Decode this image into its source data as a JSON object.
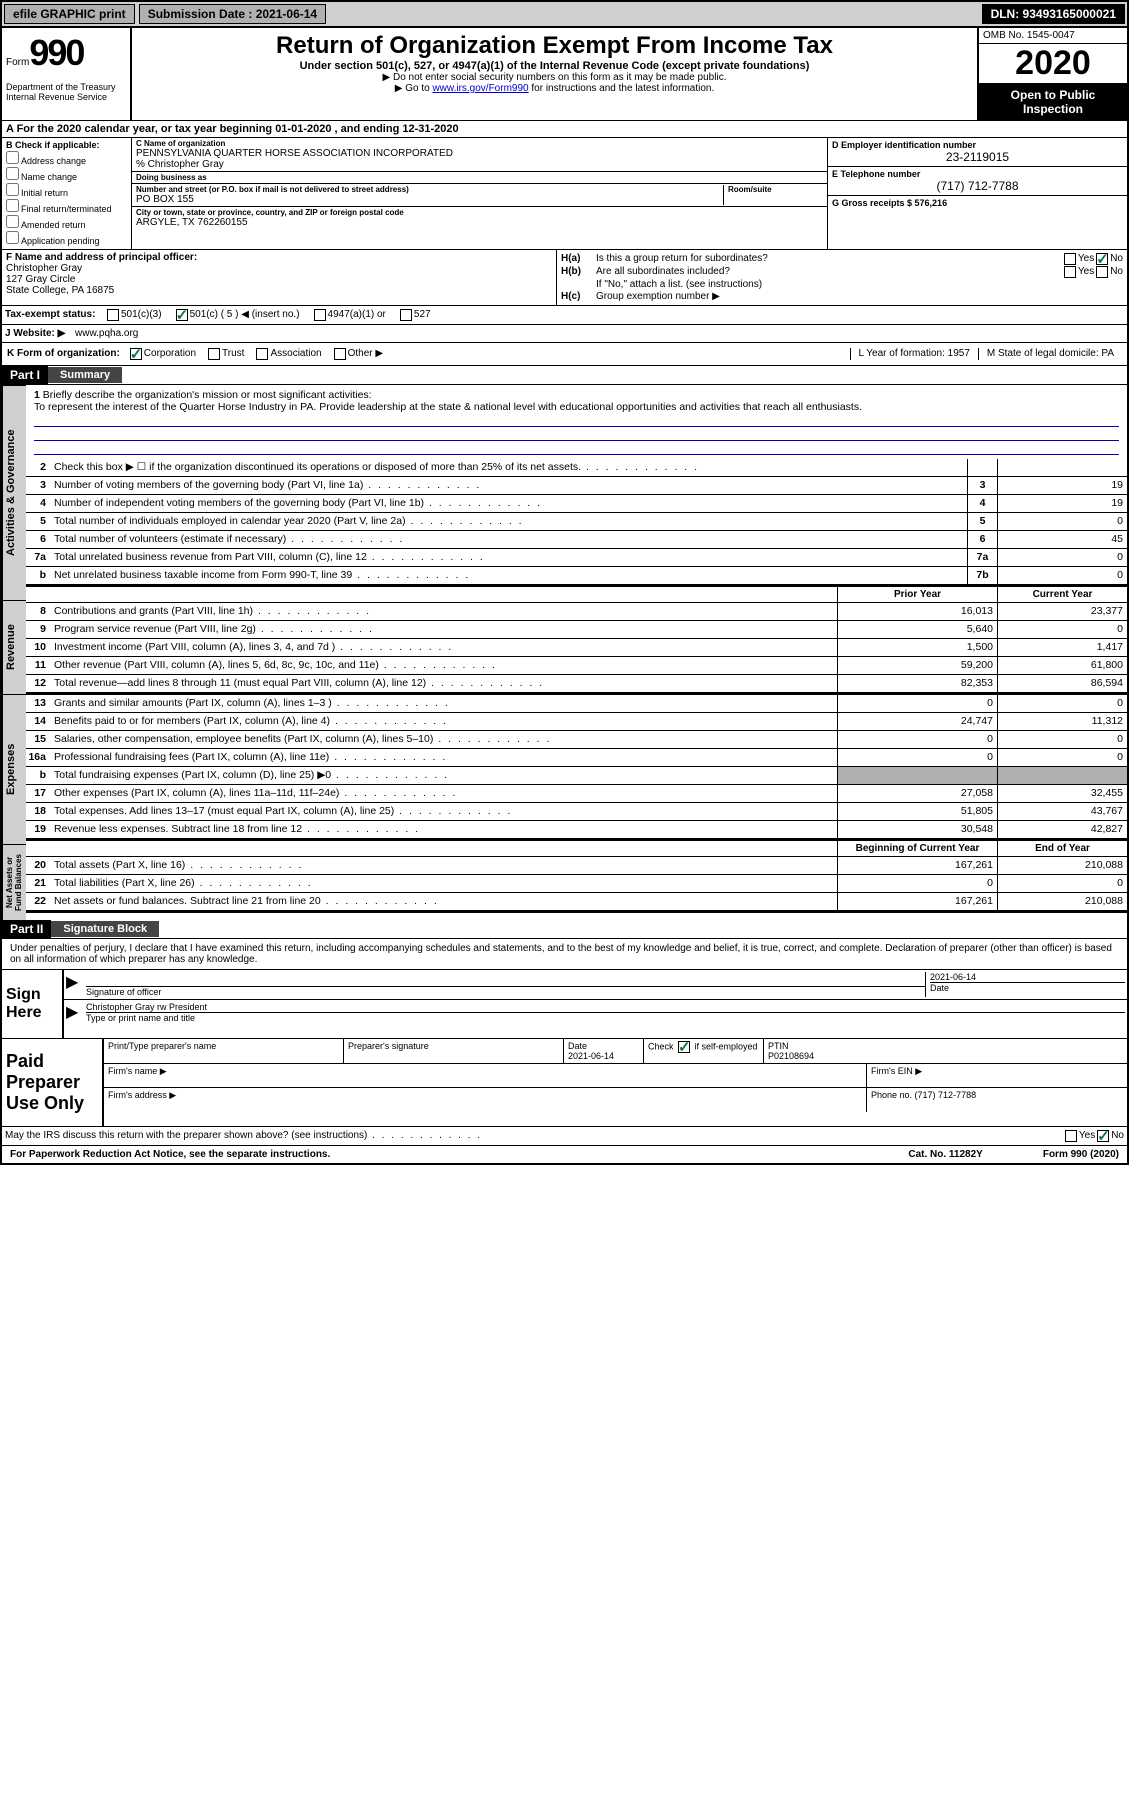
{
  "topbar": {
    "efile": "efile GRAPHIC print",
    "sub_label": "Submission Date : 2021-06-14",
    "dln": "DLN: 93493165000021"
  },
  "header": {
    "form_word": "Form",
    "form_num": "990",
    "title": "Return of Organization Exempt From Income Tax",
    "subtitle": "Under section 501(c), 527, or 4947(a)(1) of the Internal Revenue Code (except private foundations)",
    "arrow1": "▶ Do not enter social security numbers on this form as it may be made public.",
    "arrow2_pre": "▶ Go to ",
    "arrow2_link": "www.irs.gov/Form990",
    "arrow2_post": " for instructions and the latest information.",
    "dept": "Department of the Treasury\nInternal Revenue Service",
    "omb": "OMB No. 1545-0047",
    "year": "2020",
    "open": "Open to Public Inspection"
  },
  "row_a": "A For the 2020 calendar year, or tax year beginning 01-01-2020    , and ending 12-31-2020",
  "col_b": {
    "header": "B Check if applicable:",
    "items": [
      "Address change",
      "Name change",
      "Initial return",
      "Final return/terminated",
      "Amended return",
      "Application pending"
    ]
  },
  "col_c": {
    "name_label": "C Name of organization",
    "name": "PENNSYLVANIA QUARTER HORSE ASSOCIATION INCORPORATED",
    "co": "% Christopher Gray",
    "dba_label": "Doing business as",
    "addr_label": "Number and street (or P.O. box if mail is not delivered to street address)",
    "room_label": "Room/suite",
    "addr": "PO BOX 155",
    "city_label": "City or town, state or province, country, and ZIP or foreign postal code",
    "city": "ARGYLE, TX  762260155"
  },
  "col_d": {
    "ein_label": "D Employer identification number",
    "ein": "23-2119015",
    "tel_label": "E Telephone number",
    "tel": "(717) 712-7788",
    "gross_label": "G Gross receipts $ 576,216"
  },
  "principal": {
    "label": "F  Name and address of principal officer:",
    "name": "Christopher Gray",
    "addr1": "127 Gray Circle",
    "addr2": "State College, PA  16875"
  },
  "sec_h": {
    "ha": "Is this a group return for subordinates?",
    "ha_lbl": "H(a)",
    "hb_lbl": "H(b)",
    "hb": "Are all subordinates included?",
    "hb_note": "If \"No,\" attach a list. (see instructions)",
    "hc_lbl": "H(c)",
    "hc": "Group exemption number ▶"
  },
  "tax_status": {
    "label": "Tax-exempt status:",
    "c3": "501(c)(3)",
    "c5": "501(c) ( 5 ) ◀ (insert no.)",
    "a1": "4947(a)(1) or",
    "s527": "527"
  },
  "website": {
    "label": "J   Website: ▶",
    "val": "  www.pqha.org"
  },
  "row_k": {
    "label": "K Form of organization:",
    "corp": "Corporation",
    "trust": "Trust",
    "assoc": "Association",
    "other": "Other ▶",
    "year_label": "L Year of formation: 1957",
    "state_label": "M State of legal domicile: PA"
  },
  "part1": {
    "label": "Part I",
    "title": "Summary"
  },
  "mission": {
    "num": "1",
    "label": "Briefly describe the organization's mission or most significant activities:",
    "text": "To represent the interest of the Quarter Horse Industry in PA. Provide leadership at the state & national level with educational opportunities and activities that reach all enthusiasts."
  },
  "lines_gov": [
    {
      "n": "2",
      "t": "Check this box ▶ ☐  if the organization discontinued its operations or disposed of more than 25% of its net assets.",
      "box": "",
      "v": ""
    },
    {
      "n": "3",
      "t": "Number of voting members of the governing body (Part VI, line 1a)",
      "box": "3",
      "v": "19"
    },
    {
      "n": "4",
      "t": "Number of independent voting members of the governing body (Part VI, line 1b)",
      "box": "4",
      "v": "19"
    },
    {
      "n": "5",
      "t": "Total number of individuals employed in calendar year 2020 (Part V, line 2a)",
      "box": "5",
      "v": "0"
    },
    {
      "n": "6",
      "t": "Total number of volunteers (estimate if necessary)",
      "box": "6",
      "v": "45"
    },
    {
      "n": "7a",
      "t": "Total unrelated business revenue from Part VIII, column (C), line 12",
      "box": "7a",
      "v": "0"
    },
    {
      "n": "b",
      "t": "Net unrelated business taxable income from Form 990-T, line 39",
      "box": "7b",
      "v": "0"
    }
  ],
  "col_headers": {
    "prior": "Prior Year",
    "current": "Current Year",
    "begin": "Beginning of Current Year",
    "end": "End of Year"
  },
  "lines_rev": [
    {
      "n": "8",
      "t": "Contributions and grants (Part VIII, line 1h)",
      "p": "16,013",
      "c": "23,377"
    },
    {
      "n": "9",
      "t": "Program service revenue (Part VIII, line 2g)",
      "p": "5,640",
      "c": "0"
    },
    {
      "n": "10",
      "t": "Investment income (Part VIII, column (A), lines 3, 4, and 7d )",
      "p": "1,500",
      "c": "1,417"
    },
    {
      "n": "11",
      "t": "Other revenue (Part VIII, column (A), lines 5, 6d, 8c, 9c, 10c, and 11e)",
      "p": "59,200",
      "c": "61,800"
    },
    {
      "n": "12",
      "t": "Total revenue—add lines 8 through 11 (must equal Part VIII, column (A), line 12)",
      "p": "82,353",
      "c": "86,594"
    }
  ],
  "lines_exp": [
    {
      "n": "13",
      "t": "Grants and similar amounts (Part IX, column (A), lines 1–3 )",
      "p": "0",
      "c": "0"
    },
    {
      "n": "14",
      "t": "Benefits paid to or for members (Part IX, column (A), line 4)",
      "p": "24,747",
      "c": "11,312"
    },
    {
      "n": "15",
      "t": "Salaries, other compensation, employee benefits (Part IX, column (A), lines 5–10)",
      "p": "0",
      "c": "0"
    },
    {
      "n": "16a",
      "t": "Professional fundraising fees (Part IX, column (A), line 11e)",
      "p": "0",
      "c": "0"
    },
    {
      "n": "b",
      "t": "Total fundraising expenses (Part IX, column (D), line 25)  ▶0",
      "p": "",
      "c": "",
      "shade": true
    },
    {
      "n": "17",
      "t": "Other expenses (Part IX, column (A), lines 11a–11d, 11f–24e)",
      "p": "27,058",
      "c": "32,455"
    },
    {
      "n": "18",
      "t": "Total expenses. Add lines 13–17 (must equal Part IX, column (A), line 25)",
      "p": "51,805",
      "c": "43,767"
    },
    {
      "n": "19",
      "t": "Revenue less expenses. Subtract line 18 from line 12",
      "p": "30,548",
      "c": "42,827"
    }
  ],
  "lines_net": [
    {
      "n": "20",
      "t": "Total assets (Part X, line 16)",
      "p": "167,261",
      "c": "210,088"
    },
    {
      "n": "21",
      "t": "Total liabilities (Part X, line 26)",
      "p": "0",
      "c": "0"
    },
    {
      "n": "22",
      "t": "Net assets or fund balances. Subtract line 21 from line 20",
      "p": "167,261",
      "c": "210,088"
    }
  ],
  "part2": {
    "label": "Part II",
    "title": "Signature Block"
  },
  "sig": {
    "declaration": "Under penalties of perjury, I declare that I have examined this return, including accompanying schedules and statements, and to the best of my knowledge and belief, it is true, correct, and complete. Declaration of preparer (other than officer) is based on all information of which preparer has any knowledge.",
    "sign_here": "Sign Here",
    "sig_off": "Signature of officer",
    "date_lbl": "Date",
    "date_val": "2021-06-14",
    "name": "Christopher Gray rw President",
    "name_lbl": "Type or print name and title"
  },
  "prep": {
    "label": "Paid Preparer Use Only",
    "h1": "Print/Type preparer's name",
    "h2": "Preparer's signature",
    "h3": "Date",
    "date": "2021-06-14",
    "check_lbl": "Check ☑ if self-employed",
    "ptin_lbl": "PTIN",
    "ptin": "P02108694",
    "firm_name": "Firm's name     ▶",
    "firm_ein": "Firm's EIN ▶",
    "firm_addr": "Firm's address ▶",
    "phone": "Phone no. (717) 712-7788",
    "discuss": "May the IRS discuss this return with the preparer shown above? (see instructions)"
  },
  "footer": {
    "left": "For Paperwork Reduction Act Notice, see the separate instructions.",
    "mid": "Cat. No. 11282Y",
    "right": "Form 990 (2020)"
  },
  "side_labels": {
    "gov": "Activities & Governance",
    "rev": "Revenue",
    "exp": "Expenses",
    "net": "Net Assets or Fund Balances"
  },
  "yn": {
    "yes": "Yes",
    "no": "No"
  }
}
